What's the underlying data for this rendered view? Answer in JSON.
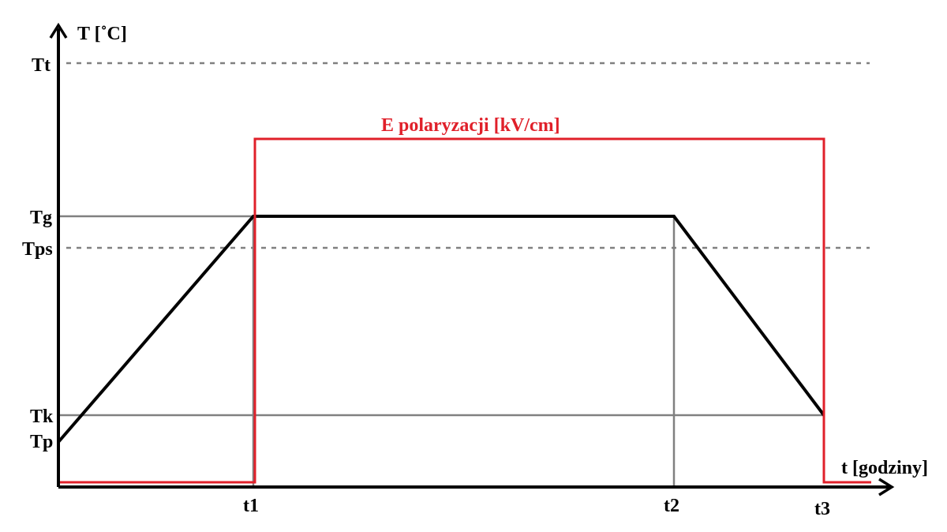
{
  "chart_data": {
    "type": "line",
    "ylabel": "T [˚C]",
    "xlabel": "t [godziny]",
    "x_ticks": [
      {
        "label": "t1",
        "value": 1
      },
      {
        "label": "t2",
        "value": 2
      },
      {
        "label": "t3",
        "value": 3
      }
    ],
    "y_ticks": [
      {
        "label": "Tt",
        "value": 5
      },
      {
        "label": "Tg",
        "value": 4
      },
      {
        "label": "Tps",
        "value": 3.6
      },
      {
        "label": "Tk",
        "value": 1.2
      },
      {
        "label": "Tp",
        "value": 0.9
      }
    ],
    "dashed_levels": [
      "Tt",
      "Tps"
    ],
    "solid_levels": [
      "Tg",
      "Tk"
    ],
    "solid_verticals": [
      "t1",
      "t2"
    ],
    "series": [
      {
        "color": "#000000",
        "points": [
          [
            0,
            0.9
          ],
          [
            1,
            4
          ],
          [
            2,
            4
          ],
          [
            3,
            1.2
          ]
        ]
      },
      {
        "name": "E polaryzacji [kV/cm]",
        "color": "#e0202a",
        "points": [
          [
            0,
            0.05
          ],
          [
            1,
            0.05
          ],
          [
            1,
            5
          ],
          [
            3,
            5
          ],
          [
            3,
            0.05
          ],
          [
            3.3,
            0.05
          ]
        ]
      }
    ],
    "xlim": [
      0,
      3.3
    ],
    "ylim": [
      0,
      5.4
    ]
  },
  "colors": {
    "axis": "#000000",
    "grid_solid": "#808080",
    "grid_dashed": "#808080",
    "temperature": "#000000",
    "field": "#e0202a"
  }
}
